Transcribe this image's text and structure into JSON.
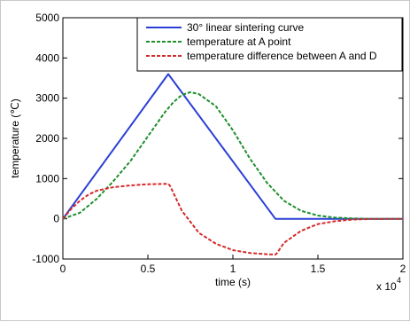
{
  "chart_data": {
    "type": "line",
    "title": "",
    "xlabel": "time (s)",
    "ylabel": "temperature (℃)",
    "x_multiplier_label": "x 10",
    "x_multiplier_exp": "4",
    "xlim": [
      0,
      2
    ],
    "ylim": [
      -1000,
      5000
    ],
    "x_ticks": [
      0,
      0.5,
      1,
      1.5,
      2
    ],
    "x_tick_labels": [
      "0",
      "0.5",
      "1",
      "1.5",
      "2"
    ],
    "y_ticks": [
      -1000,
      0,
      1000,
      2000,
      3000,
      4000,
      5000
    ],
    "y_tick_labels": [
      "-1000",
      "0",
      "1000",
      "2000",
      "3000",
      "4000",
      "5000"
    ],
    "grid": false,
    "legend_position": "top-right",
    "series": [
      {
        "name": "30° linear sintering curve",
        "color": "#2b3fd6",
        "style": "solid",
        "x": [
          0,
          0.62,
          1.25,
          2.0
        ],
        "y": [
          0,
          3600,
          0,
          0
        ]
      },
      {
        "name": "temperature at A point",
        "color": "#1f8f2c",
        "style": "dashed",
        "x": [
          0,
          0.1,
          0.2,
          0.3,
          0.4,
          0.5,
          0.6,
          0.65,
          0.7,
          0.75,
          0.8,
          0.9,
          1.0,
          1.1,
          1.2,
          1.3,
          1.4,
          1.5,
          1.6,
          1.7,
          1.8,
          2.0
        ],
        "y": [
          0,
          150,
          500,
          950,
          1450,
          2050,
          2650,
          2900,
          3080,
          3150,
          3100,
          2800,
          2200,
          1500,
          900,
          450,
          200,
          80,
          30,
          10,
          0,
          0
        ]
      },
      {
        "name": "temperature difference between A and D",
        "color": "#d42a2a",
        "style": "dashed",
        "x": [
          0,
          0.05,
          0.1,
          0.15,
          0.2,
          0.3,
          0.4,
          0.5,
          0.62,
          0.63,
          0.7,
          0.8,
          0.9,
          1.0,
          1.1,
          1.2,
          1.25,
          1.26,
          1.3,
          1.4,
          1.5,
          1.6,
          1.7,
          1.8,
          2.0
        ],
        "y": [
          0,
          250,
          450,
          600,
          700,
          790,
          830,
          860,
          870,
          820,
          200,
          -350,
          -620,
          -780,
          -850,
          -880,
          -890,
          -850,
          -600,
          -300,
          -130,
          -60,
          -20,
          -5,
          0
        ]
      }
    ]
  }
}
